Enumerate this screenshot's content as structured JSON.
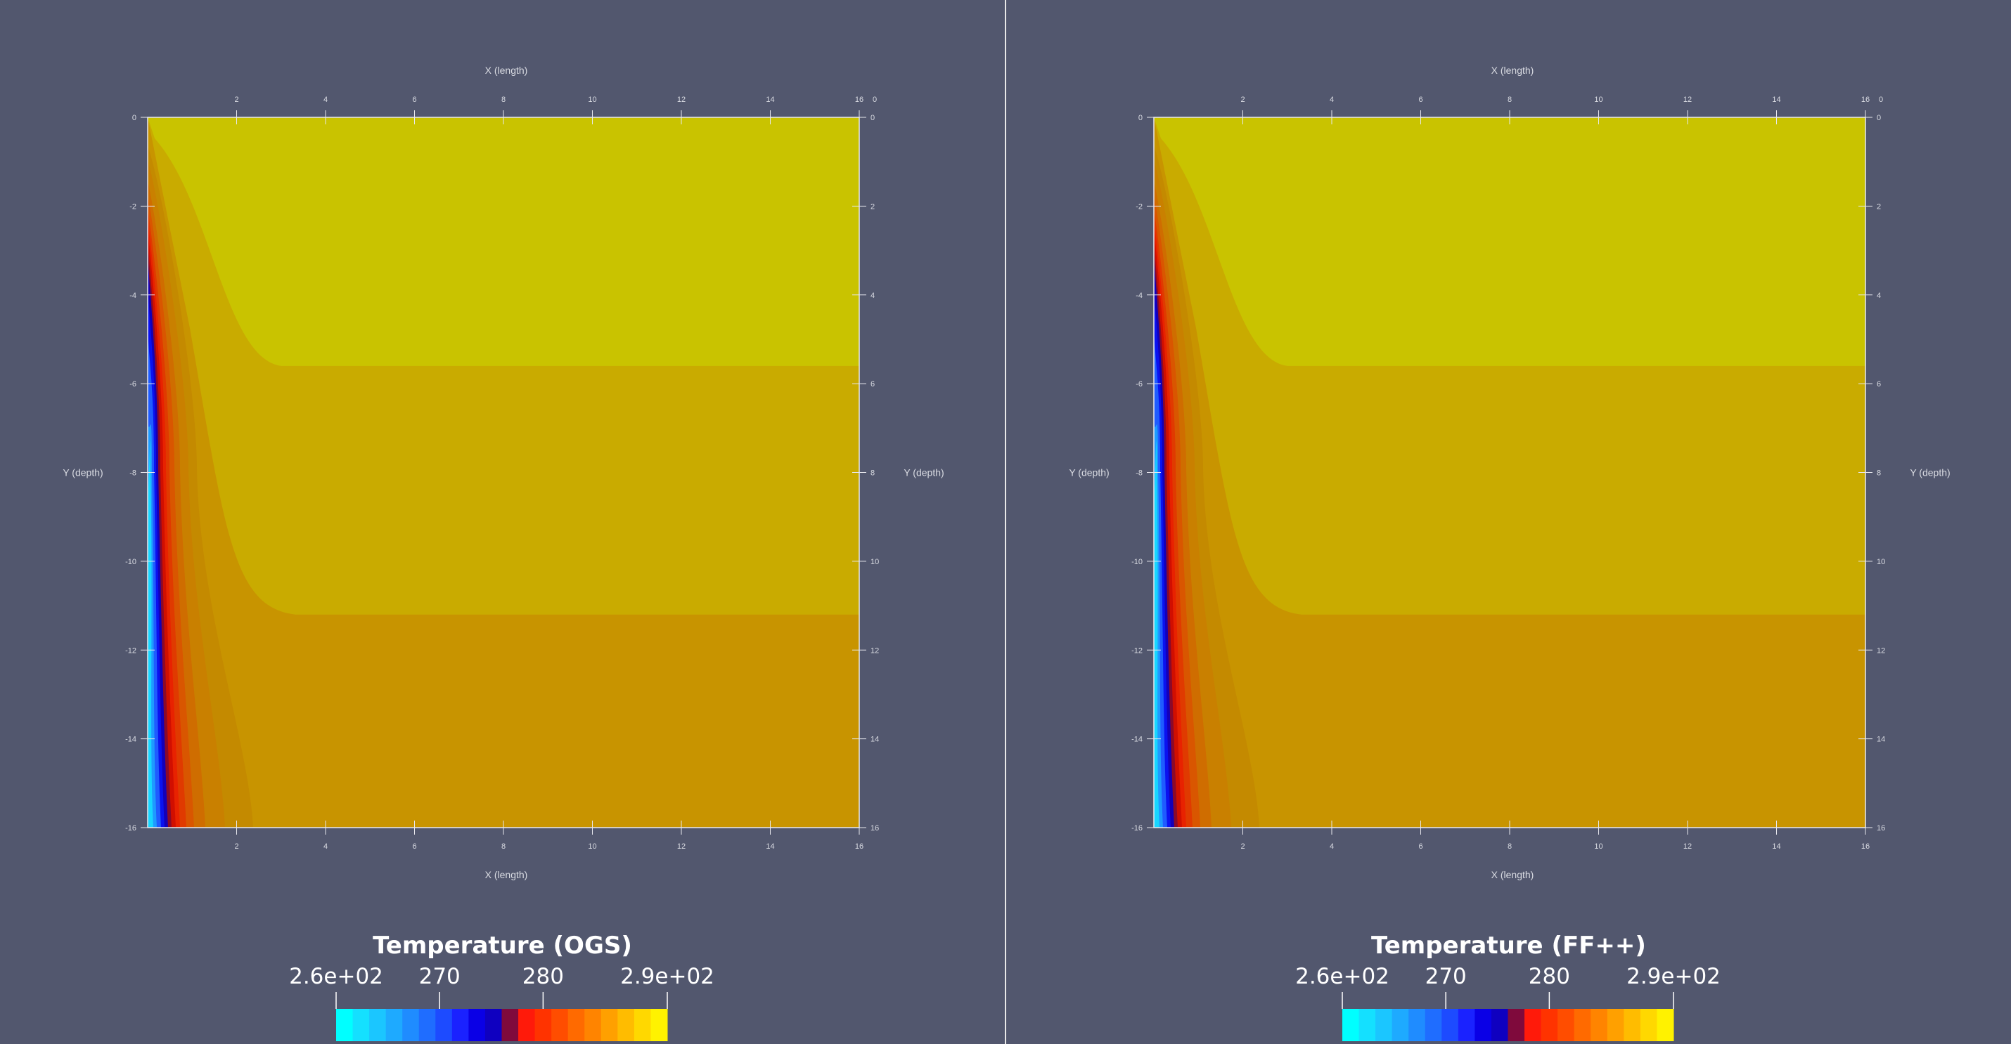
{
  "chart_data": [
    {
      "type": "heatmap",
      "title": "Temperature (OGS)",
      "xlabel": "X (length)",
      "ylabel": "Y (depth)",
      "xlim": [
        0,
        16
      ],
      "ylim": [
        -16,
        0
      ],
      "x_ticks": [
        2,
        4,
        6,
        8,
        10,
        12,
        14,
        16
      ],
      "x_ticks_top": [
        2,
        4,
        6,
        8,
        10,
        12,
        14,
        16,
        0
      ],
      "y_ticks_left": [
        0,
        -2,
        -4,
        -6,
        -8,
        -10,
        -12,
        -14,
        -16
      ],
      "y_ticks_right": [
        0,
        2,
        4,
        6,
        8,
        10,
        12,
        14,
        16
      ],
      "colorbar": {
        "range": [
          260,
          292
        ],
        "levels": 20,
        "tick_labels": [
          "2.6e+02",
          "270",
          "280",
          "2.9e+02"
        ],
        "tick_values": [
          260,
          270,
          280,
          292
        ],
        "colors": [
          "#00ffff",
          "#14e0ff",
          "#1bc6ff",
          "#1eaaff",
          "#1f8cff",
          "#1f6dff",
          "#1d4bff",
          "#1a22ff",
          "#0a00e6",
          "#0f00c0",
          "#7f0a3c",
          "#ff1a0a",
          "#ff3300",
          "#ff4d00",
          "#ff6a00",
          "#ff8400",
          "#ffa000",
          "#ffbc00",
          "#ffd800",
          "#fff200"
        ]
      },
      "field": {
        "top_band_color": "#c9c300",
        "middle_band_color": "#c9ab00",
        "bottom_band_color": "#c89400",
        "band_boundaries_depth": [
          -5.6,
          -11.2
        ]
      }
    },
    {
      "type": "heatmap",
      "title": "Temperature (FF++)",
      "xlabel": "X (length)",
      "ylabel": "Y (depth)",
      "xlim": [
        0,
        16
      ],
      "ylim": [
        -16,
        0
      ],
      "x_ticks": [
        2,
        4,
        6,
        8,
        10,
        12,
        14,
        16
      ],
      "x_ticks_top": [
        2,
        4,
        6,
        8,
        10,
        12,
        14,
        16,
        0
      ],
      "y_ticks_left": [
        0,
        -2,
        -4,
        -6,
        -8,
        -10,
        -12,
        -14,
        -16
      ],
      "y_ticks_right": [
        0,
        2,
        4,
        6,
        8,
        10,
        12,
        14,
        16
      ],
      "colorbar": {
        "range": [
          260,
          292
        ],
        "levels": 20,
        "tick_labels": [
          "2.6e+02",
          "270",
          "280",
          "2.9e+02"
        ],
        "tick_values": [
          260,
          270,
          280,
          292
        ],
        "colors": [
          "#00ffff",
          "#14e0ff",
          "#1bc6ff",
          "#1eaaff",
          "#1f8cff",
          "#1f6dff",
          "#1d4bff",
          "#1a22ff",
          "#0a00e6",
          "#0f00c0",
          "#7f0a3c",
          "#ff1a0a",
          "#ff3300",
          "#ff4d00",
          "#ff6a00",
          "#ff8400",
          "#ffa000",
          "#ffbc00",
          "#ffd800",
          "#fff200"
        ]
      },
      "field": {
        "top_band_color": "#c9c300",
        "middle_band_color": "#c9ab00",
        "bottom_band_color": "#c89400",
        "band_boundaries_depth": [
          -5.6,
          -11.2
        ]
      }
    }
  ],
  "colors": {
    "background": "#52576e",
    "axis": "#e8e8ee",
    "divider": "#e8e8e8"
  }
}
